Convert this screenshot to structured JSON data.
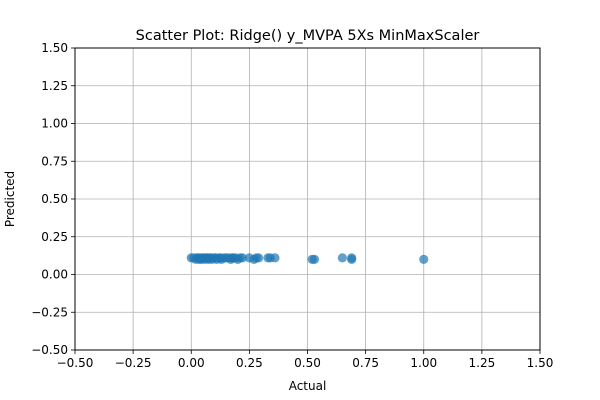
{
  "chart_data": {
    "type": "scatter",
    "title": "Scatter Plot: Ridge() y_MVPA 5Xs MinMaxScaler",
    "xlabel": "Actual",
    "ylabel": "Predicted",
    "xlim": [
      -0.5,
      1.5
    ],
    "ylim": [
      -0.5,
      1.5
    ],
    "xticks": [
      -0.5,
      -0.25,
      0.0,
      0.25,
      0.5,
      0.75,
      1.0,
      1.25,
      1.5
    ],
    "yticks": [
      -0.5,
      -0.25,
      0.0,
      0.25,
      0.5,
      0.75,
      1.0,
      1.25,
      1.5
    ],
    "xtick_labels": [
      "−0.50",
      "−0.25",
      "0.00",
      "0.25",
      "0.50",
      "0.75",
      "1.00",
      "1.25",
      "1.50"
    ],
    "ytick_labels": [
      "−0.50",
      "−0.25",
      "0.00",
      "0.25",
      "0.50",
      "0.75",
      "1.00",
      "1.25",
      "1.50"
    ],
    "grid": true,
    "legend": "none",
    "marker_color": "#1f77b4",
    "marker_alpha": 0.7,
    "points": [
      {
        "x": 0.0,
        "y": 0.11
      },
      {
        "x": 0.01,
        "y": 0.11
      },
      {
        "x": 0.02,
        "y": 0.1
      },
      {
        "x": 0.025,
        "y": 0.11
      },
      {
        "x": 0.03,
        "y": 0.11
      },
      {
        "x": 0.035,
        "y": 0.1
      },
      {
        "x": 0.04,
        "y": 0.11
      },
      {
        "x": 0.045,
        "y": 0.1
      },
      {
        "x": 0.05,
        "y": 0.11
      },
      {
        "x": 0.055,
        "y": 0.11
      },
      {
        "x": 0.06,
        "y": 0.1
      },
      {
        "x": 0.065,
        "y": 0.11
      },
      {
        "x": 0.07,
        "y": 0.11
      },
      {
        "x": 0.075,
        "y": 0.1
      },
      {
        "x": 0.08,
        "y": 0.11
      },
      {
        "x": 0.085,
        "y": 0.11
      },
      {
        "x": 0.09,
        "y": 0.1
      },
      {
        "x": 0.1,
        "y": 0.11
      },
      {
        "x": 0.105,
        "y": 0.11
      },
      {
        "x": 0.11,
        "y": 0.1
      },
      {
        "x": 0.12,
        "y": 0.11
      },
      {
        "x": 0.125,
        "y": 0.11
      },
      {
        "x": 0.13,
        "y": 0.1
      },
      {
        "x": 0.14,
        "y": 0.11
      },
      {
        "x": 0.15,
        "y": 0.11
      },
      {
        "x": 0.16,
        "y": 0.11
      },
      {
        "x": 0.17,
        "y": 0.1
      },
      {
        "x": 0.175,
        "y": 0.11
      },
      {
        "x": 0.18,
        "y": 0.11
      },
      {
        "x": 0.19,
        "y": 0.11
      },
      {
        "x": 0.2,
        "y": 0.1
      },
      {
        "x": 0.21,
        "y": 0.11
      },
      {
        "x": 0.22,
        "y": 0.11
      },
      {
        "x": 0.25,
        "y": 0.11
      },
      {
        "x": 0.27,
        "y": 0.1
      },
      {
        "x": 0.28,
        "y": 0.11
      },
      {
        "x": 0.29,
        "y": 0.11
      },
      {
        "x": 0.33,
        "y": 0.11
      },
      {
        "x": 0.34,
        "y": 0.11
      },
      {
        "x": 0.36,
        "y": 0.11
      },
      {
        "x": 0.52,
        "y": 0.1
      },
      {
        "x": 0.53,
        "y": 0.1
      },
      {
        "x": 0.65,
        "y": 0.11
      },
      {
        "x": 0.69,
        "y": 0.11
      },
      {
        "x": 0.69,
        "y": 0.1
      },
      {
        "x": 1.0,
        "y": 0.1
      }
    ]
  }
}
